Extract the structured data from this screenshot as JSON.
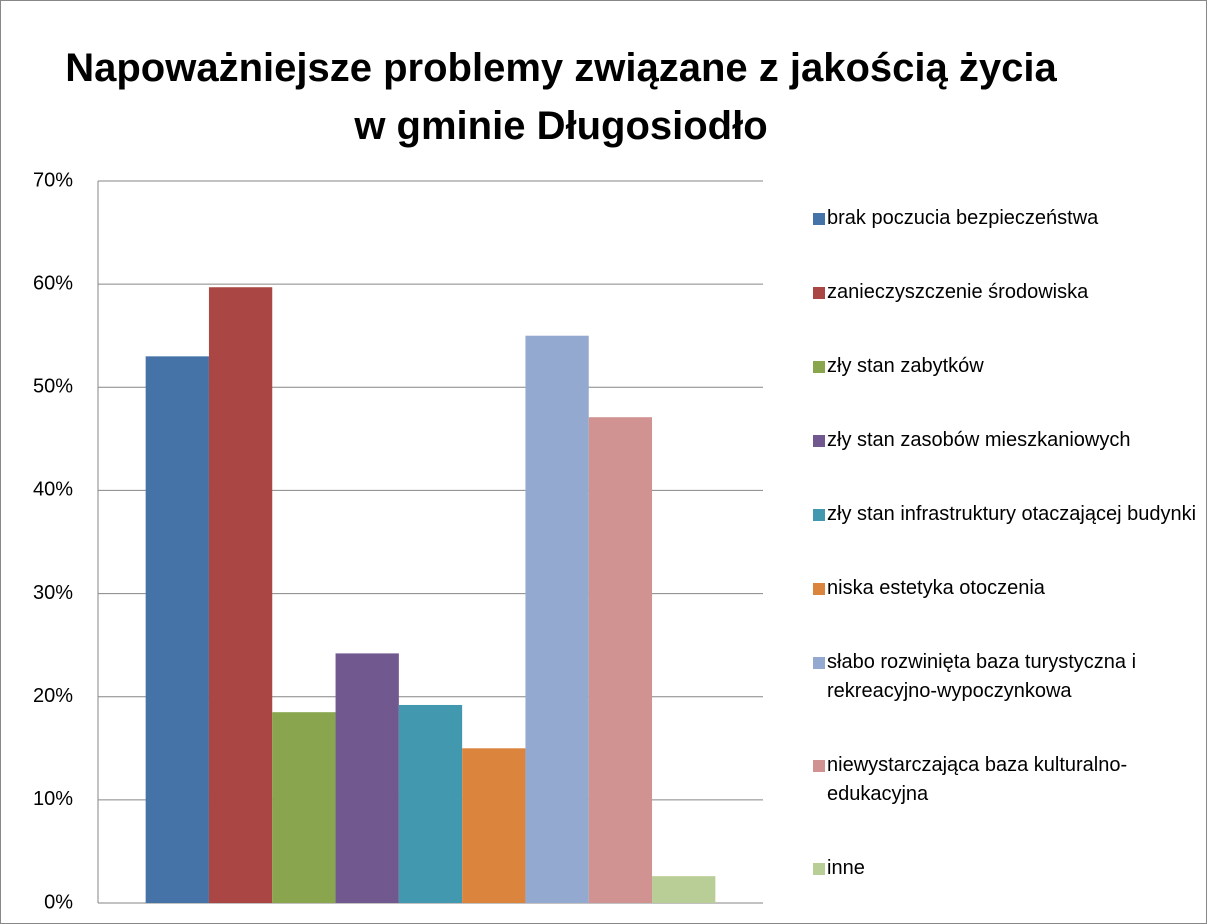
{
  "chart_data": {
    "type": "bar",
    "title": "Napoważniejsze problemy związane z jakością życia w gminie Długosiodło",
    "ylim": [
      0,
      70
    ],
    "yticks": [
      {
        "value": 0,
        "label": "0%"
      },
      {
        "value": 10,
        "label": "10%"
      },
      {
        "value": 20,
        "label": "20%"
      },
      {
        "value": 30,
        "label": "30%"
      },
      {
        "value": 40,
        "label": "40%"
      },
      {
        "value": 50,
        "label": "50%"
      },
      {
        "value": 60,
        "label": "60%"
      },
      {
        "value": 70,
        "label": "70%"
      }
    ],
    "grid": true,
    "legend": "right",
    "series": [
      {
        "name": "brak poczucia bezpieczeństwa",
        "color": "#4572a7",
        "values": [
          53.0
        ]
      },
      {
        "name": "zanieczyszczenie środowiska",
        "color": "#aa4643",
        "values": [
          59.7
        ]
      },
      {
        "name": "zły stan zabytków",
        "color": "#89a54e",
        "values": [
          18.5
        ]
      },
      {
        "name": "zły stan zasobów mieszkaniowych",
        "color": "#71588f",
        "values": [
          24.2
        ]
      },
      {
        "name": "zły stan infrastruktury otaczającej budynki",
        "color": "#4198af",
        "values": [
          19.2
        ]
      },
      {
        "name": "niska estetyka otoczenia",
        "color": "#db843d",
        "values": [
          15.0
        ]
      },
      {
        "name": "słabo rozwinięta baza turystyczna i rekreacyjno-wypoczynkowa",
        "color": "#93a9cf",
        "values": [
          55.0
        ]
      },
      {
        "name": "niewystarczająca baza kulturalno-edukacyjna",
        "color": "#d19392",
        "values": [
          47.1
        ]
      },
      {
        "name": "inne",
        "color": "#b9cd96",
        "values": [
          2.6
        ]
      }
    ]
  }
}
